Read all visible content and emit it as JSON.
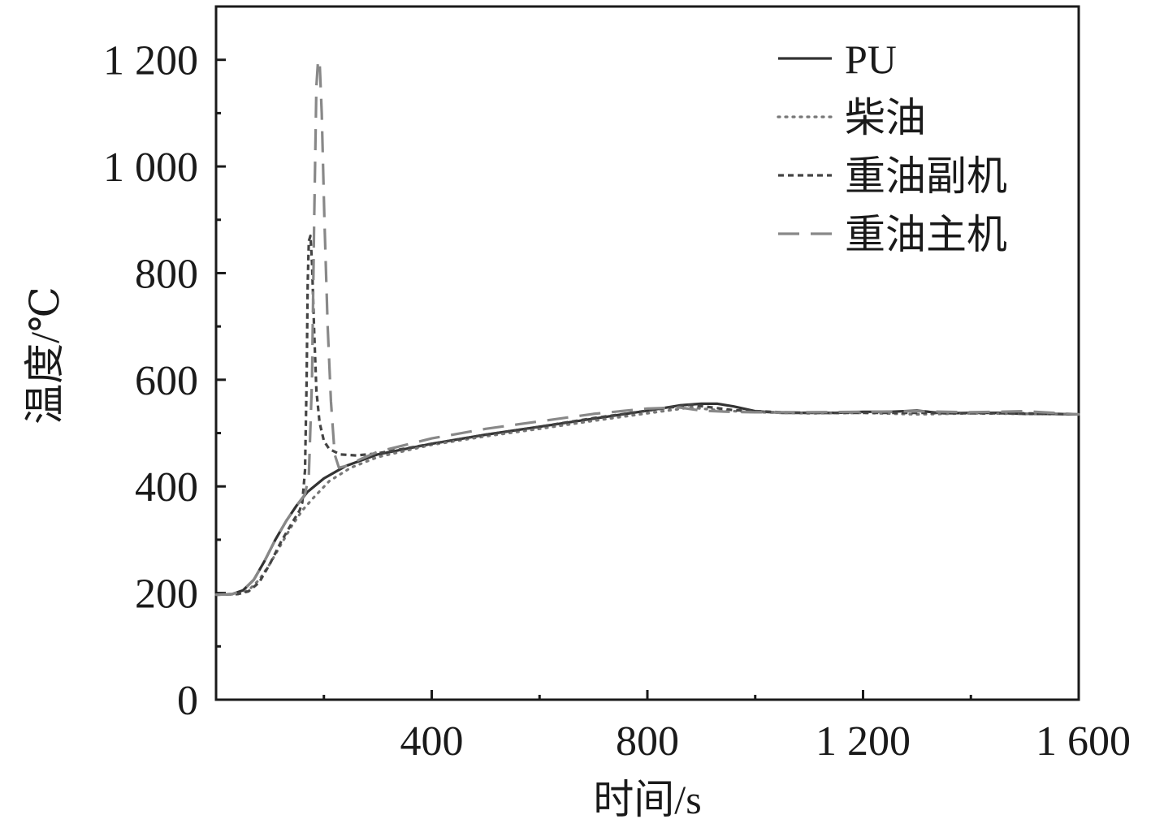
{
  "chart_data": {
    "type": "line",
    "xlabel": "时间/s",
    "ylabel": "温度/℃",
    "xlim": [
      0,
      1600
    ],
    "ylim": [
      0,
      1300
    ],
    "x_ticks": [
      400,
      800,
      1200,
      1600
    ],
    "x_tick_labels": [
      "400",
      "800",
      "1 200",
      "1 600"
    ],
    "x_minor_ticks": [
      200,
      600,
      1000,
      1400
    ],
    "y_ticks": [
      0,
      200,
      400,
      600,
      800,
      1000,
      1200
    ],
    "y_tick_labels": [
      "0",
      "200",
      "400",
      "600",
      "800",
      "1 000",
      "1 200"
    ],
    "y_minor_ticks": [
      100,
      300,
      500,
      700,
      900,
      1100
    ],
    "grid": false,
    "legend_position": "top-right",
    "series": [
      {
        "name": "PU",
        "style": "solid",
        "color": "#333333",
        "points": [
          [
            0,
            197
          ],
          [
            30,
            198
          ],
          [
            50,
            205
          ],
          [
            70,
            225
          ],
          [
            90,
            260
          ],
          [
            110,
            300
          ],
          [
            130,
            335
          ],
          [
            150,
            365
          ],
          [
            170,
            390
          ],
          [
            200,
            415
          ],
          [
            240,
            438
          ],
          [
            300,
            460
          ],
          [
            400,
            480
          ],
          [
            500,
            497
          ],
          [
            600,
            512
          ],
          [
            700,
            527
          ],
          [
            800,
            542
          ],
          [
            860,
            552
          ],
          [
            900,
            555
          ],
          [
            930,
            555
          ],
          [
            960,
            550
          ],
          [
            1000,
            541
          ],
          [
            1050,
            538
          ],
          [
            1100,
            538
          ],
          [
            1150,
            538
          ],
          [
            1200,
            540
          ],
          [
            1250,
            540
          ],
          [
            1300,
            542
          ],
          [
            1350,
            537
          ],
          [
            1400,
            538
          ],
          [
            1450,
            538
          ],
          [
            1500,
            536
          ],
          [
            1550,
            536
          ],
          [
            1600,
            535
          ]
        ]
      },
      {
        "name": "柴油",
        "style": "dotted",
        "color": "#777777",
        "points": [
          [
            0,
            197
          ],
          [
            40,
            198
          ],
          [
            60,
            205
          ],
          [
            80,
            225
          ],
          [
            100,
            255
          ],
          [
            120,
            290
          ],
          [
            140,
            325
          ],
          [
            160,
            355
          ],
          [
            180,
            378
          ],
          [
            210,
            410
          ],
          [
            250,
            435
          ],
          [
            300,
            455
          ],
          [
            400,
            478
          ],
          [
            500,
            494
          ],
          [
            600,
            508
          ],
          [
            700,
            523
          ],
          [
            800,
            537
          ],
          [
            880,
            548
          ],
          [
            930,
            543
          ],
          [
            980,
            540
          ],
          [
            1050,
            538
          ],
          [
            1100,
            537
          ],
          [
            1200,
            538
          ],
          [
            1300,
            535
          ],
          [
            1400,
            537
          ],
          [
            1500,
            536
          ],
          [
            1600,
            535
          ]
        ]
      },
      {
        "name": "重油副机",
        "style": "short-dash",
        "color": "#444444",
        "points": [
          [
            0,
            197
          ],
          [
            40,
            198
          ],
          [
            60,
            203
          ],
          [
            80,
            220
          ],
          [
            100,
            255
          ],
          [
            120,
            295
          ],
          [
            140,
            330
          ],
          [
            155,
            355
          ],
          [
            160,
            370
          ],
          [
            165,
            430
          ],
          [
            168,
            600
          ],
          [
            170,
            780
          ],
          [
            172,
            860
          ],
          [
            175,
            870
          ],
          [
            178,
            820
          ],
          [
            182,
            690
          ],
          [
            186,
            580
          ],
          [
            192,
            520
          ],
          [
            200,
            485
          ],
          [
            210,
            470
          ],
          [
            230,
            460
          ],
          [
            260,
            458
          ],
          [
            300,
            462
          ],
          [
            400,
            480
          ],
          [
            500,
            497
          ],
          [
            600,
            512
          ],
          [
            700,
            528
          ],
          [
            800,
            542
          ],
          [
            880,
            553
          ],
          [
            920,
            548
          ],
          [
            960,
            543
          ],
          [
            1050,
            539
          ],
          [
            1100,
            538
          ],
          [
            1200,
            538
          ],
          [
            1300,
            538
          ],
          [
            1400,
            537
          ],
          [
            1500,
            537
          ],
          [
            1600,
            535
          ]
        ]
      },
      {
        "name": "重油主机",
        "style": "long-dash",
        "color": "#888888",
        "points": [
          [
            0,
            197
          ],
          [
            30,
            198
          ],
          [
            50,
            205
          ],
          [
            70,
            225
          ],
          [
            90,
            260
          ],
          [
            110,
            300
          ],
          [
            130,
            335
          ],
          [
            150,
            365
          ],
          [
            165,
            385
          ],
          [
            172,
            420
          ],
          [
            178,
            600
          ],
          [
            182,
            900
          ],
          [
            186,
            1150
          ],
          [
            189,
            1195
          ],
          [
            192,
            1200
          ],
          [
            196,
            1100
          ],
          [
            201,
            900
          ],
          [
            207,
            700
          ],
          [
            213,
            560
          ],
          [
            220,
            460
          ],
          [
            228,
            435
          ],
          [
            240,
            438
          ],
          [
            270,
            452
          ],
          [
            300,
            465
          ],
          [
            400,
            490
          ],
          [
            500,
            508
          ],
          [
            600,
            522
          ],
          [
            700,
            536
          ],
          [
            800,
            546
          ],
          [
            860,
            548
          ],
          [
            900,
            542
          ],
          [
            950,
            540
          ],
          [
            1000,
            539
          ],
          [
            1100,
            539
          ],
          [
            1200,
            540
          ],
          [
            1300,
            541
          ],
          [
            1400,
            539
          ],
          [
            1500,
            541
          ],
          [
            1600,
            535
          ]
        ]
      }
    ]
  }
}
